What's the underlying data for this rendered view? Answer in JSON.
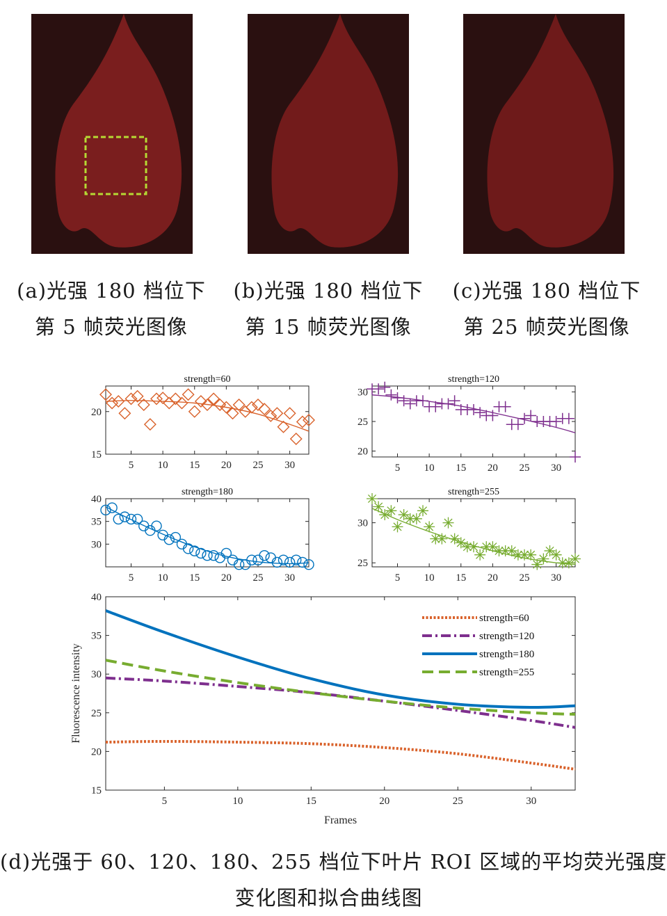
{
  "colors": {
    "strength60": "#d9622b",
    "strength120": "#7e2f8e",
    "strength180": "#0072bd",
    "strength255": "#77ac30",
    "leaf": "#7a1e1e",
    "background": "#2a1010",
    "roi": "#b5d934"
  },
  "images": [
    {
      "caption_line1": "(a)光强 180 档位下",
      "caption_line2": "第 5 帧荧光图像",
      "has_roi": true
    },
    {
      "caption_line1": "(b)光强 180 档位下",
      "caption_line2": "第 15 帧荧光图像",
      "has_roi": false
    },
    {
      "caption_line1": "(c)光强 180 档位下",
      "caption_line2": "第 25 帧荧光图像",
      "has_roi": false
    }
  ],
  "bottom_caption": {
    "line1": "(d)光强于 60、120、180、255 档位下叶片 ROI 区域的平均荧光强度",
    "line2": "变化图和拟合曲线图"
  },
  "chart_data": [
    {
      "type": "scatter",
      "title": "strength=60",
      "marker": "diamond",
      "color_key": "strength60",
      "xlim": [
        1,
        33
      ],
      "ylim": [
        15,
        23
      ],
      "xticks": [
        5,
        10,
        15,
        20,
        25,
        30
      ],
      "yticks": [
        15,
        20
      ],
      "x": [
        1,
        2,
        3,
        4,
        5,
        6,
        7,
        8,
        9,
        10,
        11,
        12,
        13,
        14,
        15,
        16,
        17,
        18,
        19,
        20,
        21,
        22,
        23,
        24,
        25,
        26,
        27,
        28,
        29,
        30,
        31,
        32,
        33
      ],
      "values": [
        22.0,
        21.0,
        21.2,
        19.8,
        21.5,
        21.8,
        20.8,
        18.5,
        21.5,
        21.6,
        21.0,
        21.5,
        21.0,
        22.0,
        20.0,
        21.2,
        20.8,
        21.5,
        20.8,
        20.5,
        19.8,
        20.8,
        20.0,
        20.5,
        20.8,
        20.3,
        19.5,
        19.8,
        18.2,
        19.8,
        16.8,
        18.8,
        19.0
      ],
      "fit": {
        "x": [
          1,
          5,
          10,
          15,
          20,
          25,
          30,
          33
        ],
        "y": [
          21.2,
          21.3,
          21.2,
          21.0,
          20.5,
          19.7,
          18.5,
          17.7
        ]
      }
    },
    {
      "type": "scatter",
      "title": "strength=120",
      "marker": "plus",
      "color_key": "strength120",
      "xlim": [
        1,
        33
      ],
      "ylim": [
        19,
        31
      ],
      "xticks": [
        5,
        10,
        15,
        20,
        25,
        30
      ],
      "yticks": [
        20,
        25,
        30
      ],
      "x": [
        1,
        2,
        3,
        4,
        5,
        6,
        7,
        8,
        9,
        10,
        11,
        12,
        13,
        14,
        15,
        16,
        17,
        18,
        19,
        20,
        21,
        22,
        23,
        24,
        25,
        26,
        27,
        28,
        29,
        30,
        31,
        32,
        33
      ],
      "values": [
        30.5,
        30.5,
        30.8,
        29.5,
        29.0,
        28.5,
        28.0,
        28.5,
        28.5,
        27.5,
        27.5,
        28.0,
        28.0,
        28.5,
        27.0,
        27.0,
        27.0,
        26.5,
        26.0,
        26.0,
        27.5,
        27.5,
        24.5,
        24.5,
        25.5,
        26.0,
        25.0,
        25.0,
        25.0,
        25.0,
        25.5,
        25.5,
        19.0
      ],
      "fit": {
        "x": [
          1,
          5,
          10,
          15,
          20,
          25,
          30,
          33
        ],
        "y": [
          29.5,
          29.1,
          28.4,
          27.6,
          26.5,
          25.3,
          24.0,
          23.1
        ]
      }
    },
    {
      "type": "scatter",
      "title": "strength=180",
      "marker": "circle",
      "color_key": "strength180",
      "xlim": [
        1,
        33
      ],
      "ylim": [
        25,
        40
      ],
      "xticks": [
        5,
        10,
        15,
        20,
        25,
        30
      ],
      "yticks": [
        30,
        35,
        40
      ],
      "x": [
        1,
        2,
        3,
        4,
        5,
        6,
        7,
        8,
        9,
        10,
        11,
        12,
        13,
        14,
        15,
        16,
        17,
        18,
        19,
        20,
        21,
        22,
        23,
        24,
        25,
        26,
        27,
        28,
        29,
        30,
        31,
        32,
        33
      ],
      "values": [
        37.5,
        38.0,
        35.5,
        36.0,
        35.5,
        35.5,
        34.0,
        33.0,
        34.0,
        32.0,
        31.0,
        31.5,
        30.0,
        29.0,
        28.5,
        28.0,
        27.5,
        27.5,
        27.0,
        28.0,
        26.5,
        25.5,
        25.5,
        26.5,
        26.5,
        27.5,
        27.0,
        26.0,
        26.5,
        26.0,
        26.5,
        26.0,
        25.5
      ],
      "fit": {
        "x": [
          1,
          5,
          10,
          15,
          20,
          25,
          30,
          33
        ],
        "y": [
          38.2,
          35.4,
          32.2,
          29.4,
          27.3,
          26.1,
          25.7,
          25.9
        ]
      }
    },
    {
      "type": "scatter",
      "title": "strength=255",
      "marker": "asterisk",
      "color_key": "strength255",
      "xlim": [
        1,
        33
      ],
      "ylim": [
        24.5,
        33
      ],
      "xticks": [
        5,
        10,
        15,
        20,
        25,
        30
      ],
      "yticks": [
        25,
        30
      ],
      "x": [
        1,
        2,
        3,
        4,
        5,
        6,
        7,
        8,
        9,
        10,
        11,
        12,
        13,
        14,
        15,
        16,
        17,
        18,
        19,
        20,
        21,
        22,
        23,
        24,
        25,
        26,
        27,
        28,
        29,
        30,
        31,
        32,
        33
      ],
      "values": [
        33.0,
        32.0,
        31.0,
        31.5,
        29.5,
        31.0,
        30.5,
        30.5,
        31.5,
        29.5,
        28.0,
        28.0,
        30.0,
        28.0,
        27.5,
        27.0,
        27.0,
        26.0,
        27.0,
        27.0,
        26.5,
        26.5,
        26.5,
        26.0,
        26.0,
        26.0,
        24.8,
        25.5,
        26.5,
        26.0,
        25.0,
        25.0,
        25.5
      ],
      "fit": {
        "x": [
          1,
          5,
          10,
          15,
          20,
          25,
          30,
          33
        ],
        "y": [
          31.8,
          30.4,
          28.9,
          27.6,
          26.5,
          25.6,
          25.0,
          24.8
        ]
      }
    },
    {
      "type": "line",
      "xlabel": "Frames",
      "ylabel": "Fluorescence intensity",
      "xlim": [
        1,
        33
      ],
      "ylim": [
        15,
        40
      ],
      "xticks": [
        5,
        10,
        15,
        20,
        25,
        30
      ],
      "yticks": [
        15,
        20,
        25,
        30,
        35,
        40
      ],
      "legend_position": "top-right",
      "series": [
        {
          "name": "strength=60",
          "style": "dotted",
          "color_key": "strength60",
          "x": [
            1,
            5,
            10,
            15,
            20,
            25,
            30,
            33
          ],
          "values": [
            21.2,
            21.3,
            21.2,
            21.0,
            20.5,
            19.7,
            18.5,
            17.7
          ]
        },
        {
          "name": "strength=120",
          "style": "dashdot",
          "color_key": "strength120",
          "x": [
            1,
            5,
            10,
            15,
            20,
            25,
            30,
            33
          ],
          "values": [
            29.5,
            29.1,
            28.4,
            27.6,
            26.5,
            25.3,
            24.0,
            23.1
          ]
        },
        {
          "name": "strength=180",
          "style": "solid",
          "color_key": "strength180",
          "x": [
            1,
            5,
            10,
            15,
            20,
            25,
            30,
            33
          ],
          "values": [
            38.2,
            35.4,
            32.2,
            29.4,
            27.3,
            26.1,
            25.7,
            25.9
          ]
        },
        {
          "name": "strength=255",
          "style": "dashed",
          "color_key": "strength255",
          "x": [
            1,
            5,
            10,
            15,
            20,
            25,
            30,
            33
          ],
          "values": [
            31.8,
            30.4,
            28.9,
            27.6,
            26.5,
            25.6,
            25.0,
            24.8
          ]
        }
      ]
    }
  ]
}
